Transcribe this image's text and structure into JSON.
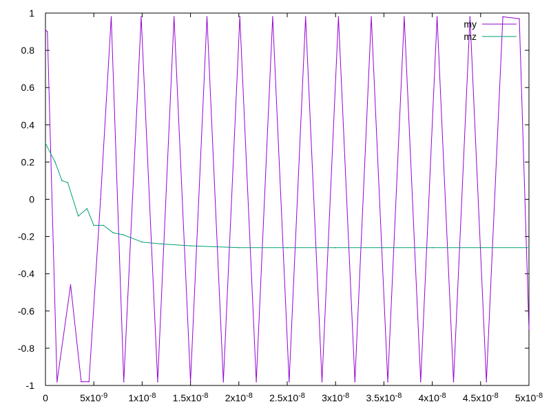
{
  "chart_data": {
    "type": "line",
    "title": "",
    "xlabel": "",
    "ylabel": "",
    "xlim": [
      0,
      5e-08
    ],
    "ylim": [
      -1,
      1
    ],
    "grid": false,
    "legend_position": "top-right",
    "x_tick_labels": [
      {
        "value": 0,
        "label": "0"
      },
      {
        "value": 5e-09,
        "label": "5x10",
        "exp": "-9"
      },
      {
        "value": 1e-08,
        "label": "1x10",
        "exp": "-8"
      },
      {
        "value": 1.5e-08,
        "label": "1.5x10",
        "exp": "-8"
      },
      {
        "value": 2e-08,
        "label": "2x10",
        "exp": "-8"
      },
      {
        "value": 2.5e-08,
        "label": "2.5x10",
        "exp": "-8"
      },
      {
        "value": 3e-08,
        "label": "3x10",
        "exp": "-8"
      },
      {
        "value": 3.5e-08,
        "label": "3.5x10",
        "exp": "-8"
      },
      {
        "value": 4e-08,
        "label": "4x10",
        "exp": "-8"
      },
      {
        "value": 4.5e-08,
        "label": "4.5x10",
        "exp": "-8"
      },
      {
        "value": 5e-08,
        "label": "5x10",
        "exp": "-8"
      }
    ],
    "y_ticks": [
      -1,
      -0.8,
      -0.6,
      -0.4,
      -0.2,
      0,
      0.2,
      0.4,
      0.6,
      0.8,
      1
    ],
    "y_tick_labels": [
      "-1",
      "-0.8",
      "-0.6",
      "-0.4",
      "-0.2",
      "0",
      "0.2",
      "0.4",
      "0.6",
      "0.8",
      "1"
    ],
    "series": [
      {
        "name": "my",
        "color": "#9400d3",
        "x": [
          0,
          2e-10,
          1.2e-09,
          2.6e-09,
          3.7e-09,
          4.5e-09,
          5.7e-09,
          6.8e-09,
          8.1e-09,
          9.9e-09,
          1.16e-08,
          1.33e-08,
          1.5e-08,
          1.67e-08,
          1.84e-08,
          2.01e-08,
          2.18e-08,
          2.35e-08,
          2.52e-08,
          2.69e-08,
          2.86e-08,
          3.03e-08,
          3.2e-08,
          3.37e-08,
          3.54e-08,
          3.71e-08,
          3.88e-08,
          4.05e-08,
          4.22e-08,
          4.39e-08,
          4.56e-08,
          4.73e-08,
          4.9e-08,
          5e-08
        ],
        "y": [
          0.91,
          0.9,
          -0.98,
          -0.46,
          -0.98,
          -0.98,
          0.0,
          0.98,
          -0.98,
          0.98,
          -0.98,
          0.98,
          -0.98,
          0.98,
          -0.98,
          0.98,
          -0.98,
          0.98,
          -0.98,
          0.98,
          -0.98,
          0.98,
          -0.98,
          0.98,
          -0.98,
          0.98,
          -0.98,
          0.98,
          -0.98,
          0.98,
          -0.98,
          0.98,
          0.97,
          -0.7
        ]
      },
      {
        "name": "mz",
        "color": "#009e73",
        "x": [
          0,
          1e-09,
          1.7e-09,
          2.3e-09,
          3.4e-09,
          4.3e-09,
          5e-09,
          6e-09,
          7e-09,
          8e-09,
          1e-08,
          1.2e-08,
          1.5e-08,
          2e-08,
          2.5e-08,
          3e-08,
          3.5e-08,
          4e-08,
          4.5e-08,
          5e-08
        ],
        "y": [
          0.3,
          0.2,
          0.1,
          0.09,
          -0.09,
          -0.05,
          -0.14,
          -0.14,
          -0.18,
          -0.19,
          -0.23,
          -0.24,
          -0.25,
          -0.26,
          -0.26,
          -0.26,
          -0.26,
          -0.26,
          -0.26,
          -0.26
        ]
      }
    ]
  }
}
